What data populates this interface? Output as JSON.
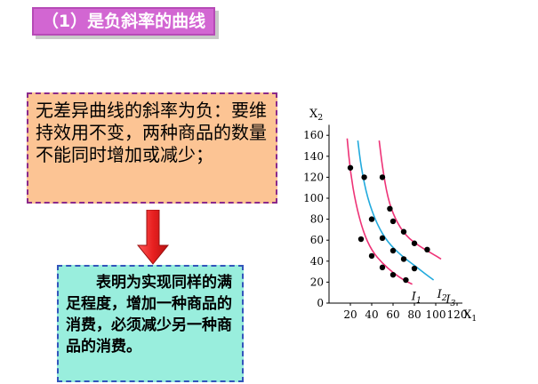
{
  "title": "（1）是负斜率的曲线",
  "statement": "无差异曲线的斜率为负：要维持效用不变，两种商品的数量不能同时增加或减少；",
  "explanation": "表明为实现同样的满足程度，增加一种商品的消费，必须减少另一种商品的消费。",
  "colors": {
    "title_bg": "#d266d2",
    "statement_bg": "#fcc494",
    "explanation_bg": "#99eedd",
    "arrow": "#e82020",
    "curves": "#ee3377",
    "middle_curve": "#22aadd",
    "points": "#000000"
  },
  "chart_data": {
    "type": "line",
    "x_axis": {
      "label_base": "X",
      "label_sub": "1",
      "range": [
        0,
        125
      ],
      "ticks": [
        20,
        40,
        60,
        80,
        100,
        120
      ]
    },
    "y_axis": {
      "label_base": "X",
      "label_sub": "2",
      "range": [
        0,
        170
      ],
      "ticks": [
        0,
        20,
        40,
        60,
        80,
        100,
        120,
        140,
        160
      ]
    },
    "series": [
      {
        "label_base": "I",
        "label_sub": "1",
        "curve": [
          [
            17,
            157
          ],
          [
            20,
            125
          ],
          [
            25,
            95
          ],
          [
            32,
            68
          ],
          [
            40,
            50
          ],
          [
            50,
            38
          ],
          [
            60,
            29
          ],
          [
            70,
            22
          ],
          [
            78,
            18
          ]
        ],
        "points": [
          [
            20,
            129
          ],
          [
            30,
            61
          ],
          [
            40,
            45
          ],
          [
            50,
            34
          ],
          [
            60,
            27
          ],
          [
            72,
            22
          ]
        ]
      },
      {
        "label_base": "I",
        "label_sub": "2",
        "curve": [
          [
            27,
            155
          ],
          [
            30,
            130
          ],
          [
            36,
            100
          ],
          [
            45,
            75
          ],
          [
            55,
            58
          ],
          [
            68,
            45
          ],
          [
            80,
            36
          ],
          [
            90,
            28
          ],
          [
            98,
            22
          ]
        ],
        "points": [
          [
            33,
            120
          ],
          [
            40,
            80
          ],
          [
            50,
            62
          ],
          [
            60,
            50
          ],
          [
            70,
            42
          ],
          [
            80,
            33
          ]
        ]
      },
      {
        "label_base": "I",
        "label_sub": "3",
        "curve": [
          [
            47,
            155
          ],
          [
            50,
            130
          ],
          [
            55,
            100
          ],
          [
            62,
            80
          ],
          [
            72,
            64
          ],
          [
            85,
            54
          ],
          [
            97,
            47
          ],
          [
            105,
            42
          ]
        ],
        "points": [
          [
            50,
            120
          ],
          [
            57,
            90
          ],
          [
            60,
            78
          ],
          [
            70,
            68
          ],
          [
            80,
            57
          ],
          [
            92,
            51
          ]
        ]
      }
    ]
  }
}
